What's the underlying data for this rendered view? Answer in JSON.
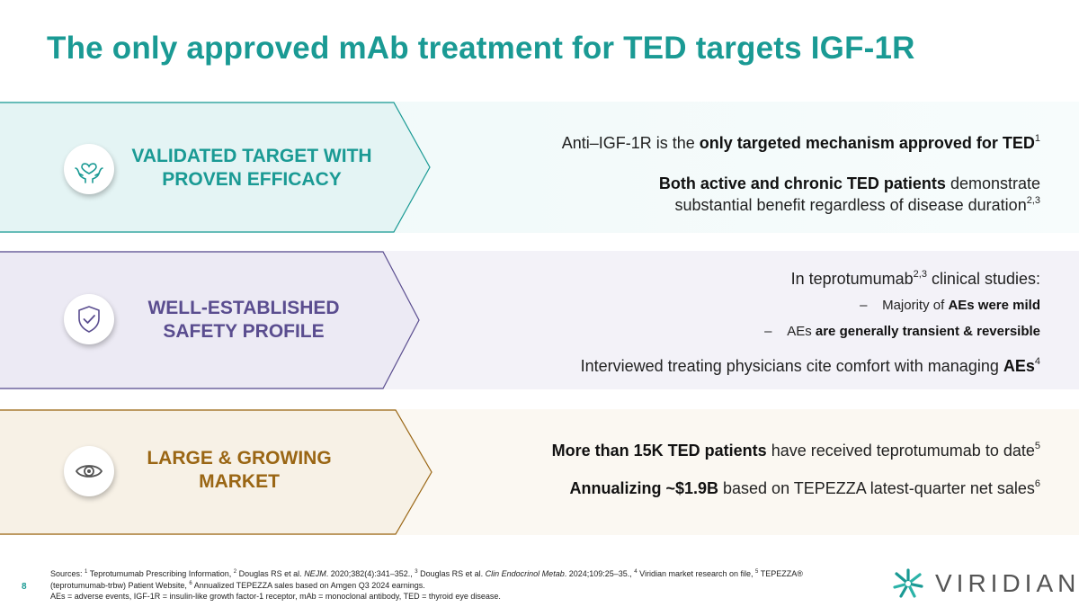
{
  "page": {
    "title": "The only approved mAb treatment for TED targets IGF-1R",
    "page_number": "8"
  },
  "colors": {
    "teal": "#1a9a94",
    "purple": "#5a4d8f",
    "gold": "#9a6614"
  },
  "sections": [
    {
      "icon": "hands-heart-icon",
      "label_line1": "VALIDATED TARGET WITH",
      "label_line2": "PROVEN EFFICACY",
      "p1_pre": "Anti–IGF-1R is the ",
      "p1_bold": "only targeted mechanism approved for TED",
      "p1_sup": "1",
      "p2_bold": "Both active and chronic TED patients",
      "p2_post": " demonstrate",
      "p2_line2": "substantial benefit regardless of disease duration",
      "p2_sup": "2,3"
    },
    {
      "icon": "shield-check-icon",
      "label_line1": "WELL-ESTABLISHED",
      "label_line2": "SAFETY PROFILE",
      "p1_pre": "In teprotumumab",
      "p1_sup": "2,3",
      "p1_post": " clinical studies:",
      "b1_dash": "–",
      "b1_pre": "Majority of ",
      "b1_bold": "AEs were mild",
      "b2_dash": "–",
      "b2_pre": "AEs ",
      "b2_bold": "are generally transient & reversible",
      "p2_pre": "Interviewed treating physicians cite comfort with managing ",
      "p2_bold": "AEs",
      "p2_sup": "4"
    },
    {
      "icon": "eye-icon",
      "label_line1": "LARGE & GROWING",
      "label_line2": "MARKET",
      "p1_bold": "More than 15K TED patients",
      "p1_post": " have received teprotumumab to date",
      "p1_sup": "5",
      "p2_bold": "Annualizing ~$1.9B",
      "p2_post": " based on TEPEZZA latest-quarter net sales",
      "p2_sup": "6"
    }
  ],
  "footer": {
    "sources_label": "Sources: ",
    "s1_sup": "1",
    "s1": " Teprotumumab Prescribing Information, ",
    "s2_sup": "2",
    "s2_pre": " Douglas RS et al. ",
    "s2_journal": "NEJM",
    "s2_post": ". 2020;382(4):341–352., ",
    "s3_sup": "3",
    "s3_pre": " Douglas RS et al. ",
    "s3_journal": "Clin Endocrinol Metab",
    "s3_post": ". 2024;109:25–35., ",
    "s4_sup": "4",
    "s4": " Viridian market research on file,  ",
    "s5_sup": "5",
    "s5": " TEPEZZA®",
    "line2_pre": "(teprotumumab-trbw) Patient Website, ",
    "s6_sup": "6",
    "s6": " Annualized TEPEZZA sales based on Amgen Q3 2024 earnings.",
    "line3": "AEs = adverse events, IGF-1R = insulin-like growth factor-1 receptor, mAb = monoclonal antibody, TED = thyroid eye disease."
  },
  "logo": {
    "text": "VIRIDIAN",
    "icon": "viridian-star-logo-icon"
  }
}
